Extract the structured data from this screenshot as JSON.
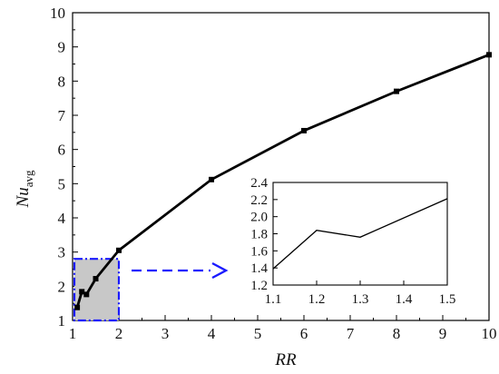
{
  "chart_data": [
    {
      "id": "main",
      "type": "line",
      "xlabel": "RR",
      "ylabel": {
        "base": "Nu",
        "subscript": "avg"
      },
      "xlim": [
        1,
        10
      ],
      "ylim": [
        1,
        10
      ],
      "xticks": [
        "1",
        "2",
        "3",
        "4",
        "5",
        "6",
        "7",
        "8",
        "9",
        "10"
      ],
      "yticks": [
        "1",
        "2",
        "3",
        "4",
        "5",
        "6",
        "7",
        "8",
        "9",
        "10"
      ],
      "grid": false,
      "series": [
        {
          "x": [
            1.1,
            1.2,
            1.3,
            1.5,
            2,
            4,
            6,
            8,
            10
          ],
          "y": [
            1.38,
            1.84,
            1.76,
            2.22,
            3.05,
            5.12,
            6.55,
            7.7,
            8.77
          ],
          "marker": "square",
          "color": "#000000"
        }
      ],
      "highlight_region": {
        "x": [
          1,
          2
        ],
        "y": [
          1,
          2.8
        ],
        "fill": "#c8c8c8",
        "border": "#1a1aff"
      },
      "arrow_color": "#1a1aff"
    },
    {
      "id": "inset",
      "type": "line",
      "xlim": [
        1.1,
        1.5
      ],
      "ylim": [
        1.2,
        2.4
      ],
      "xticks": [
        "1.1",
        "1.2",
        "1.3",
        "1.4",
        "1.5"
      ],
      "yticks": [
        "1.2",
        "1.4",
        "1.6",
        "1.8",
        "2.0",
        "2.2",
        "2.4"
      ],
      "grid": false,
      "series": [
        {
          "x": [
            1.1,
            1.2,
            1.3,
            1.5
          ],
          "y": [
            1.39,
            1.84,
            1.76,
            2.21
          ],
          "marker": "none",
          "color": "#000000"
        }
      ]
    }
  ]
}
